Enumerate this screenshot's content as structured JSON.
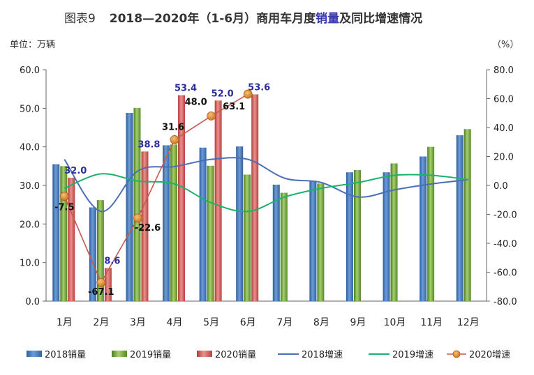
{
  "chart_data": {
    "type": "bar",
    "title_prefix": "图表9",
    "title": "2018—2020年（1-6月）商用车月度销量及同比增速情况",
    "title_highlight": "销量",
    "unit_left": "单位：万辆",
    "unit_right": "（%）",
    "categories": [
      "1月",
      "2月",
      "3月",
      "4月",
      "5月",
      "6月",
      "7月",
      "8月",
      "9月",
      "10月",
      "11月",
      "12月"
    ],
    "y_left": {
      "ylim": [
        0,
        60
      ],
      "ticks": [
        "0.0",
        "10.0",
        "20.0",
        "30.0",
        "40.0",
        "50.0",
        "60.0"
      ]
    },
    "y_right": {
      "ylim": [
        -80,
        80
      ],
      "ticks": [
        "80.0",
        "60.0",
        "40.0",
        "20.0",
        "0.0",
        "-20.0",
        "-40.0",
        "-60.0",
        "-80.0"
      ]
    },
    "bar_series": [
      {
        "name": "2018销量",
        "color": "#3b73b9",
        "values": [
          35.5,
          24.3,
          48.8,
          40.4,
          39.8,
          40.1,
          30.2,
          31.2,
          33.4,
          33.4,
          37.5,
          43.0
        ]
      },
      {
        "name": "2019销量",
        "color": "#72a23a",
        "values": [
          35.0,
          26.2,
          50.1,
          40.6,
          35.1,
          32.8,
          28.1,
          30.5,
          34.0,
          35.7,
          40.0,
          44.6
        ]
      },
      {
        "name": "2020销量",
        "color": "#cf5a57",
        "values": [
          32.0,
          8.6,
          38.8,
          53.4,
          52.0,
          53.6,
          null,
          null,
          null,
          null,
          null,
          null
        ],
        "labels": [
          "32.0",
          "8.6",
          "38.8",
          "53.4",
          "52.0",
          "53.6"
        ]
      }
    ],
    "line_series": [
      {
        "name": "2018增速",
        "color": "#4a6fb5",
        "values": [
          18,
          -18,
          10,
          13,
          18,
          18,
          5,
          2,
          -8,
          -3,
          1,
          4
        ]
      },
      {
        "name": "2019增速",
        "color": "#1bb26e",
        "values": [
          -2,
          8,
          3,
          1,
          -12,
          -18,
          -8,
          -2,
          2,
          7,
          7,
          4
        ]
      },
      {
        "name": "2020增速",
        "color": "#c06b1c",
        "values": [
          -7.5,
          -67.1,
          -22.6,
          31.6,
          48.0,
          63.1,
          null,
          null,
          null,
          null,
          null,
          null
        ],
        "labels": [
          "-7.5",
          "-67.1",
          "-22.6",
          "31.6",
          "48.0",
          "63.1"
        ]
      }
    ],
    "grid": false,
    "legend_position": "bottom"
  }
}
